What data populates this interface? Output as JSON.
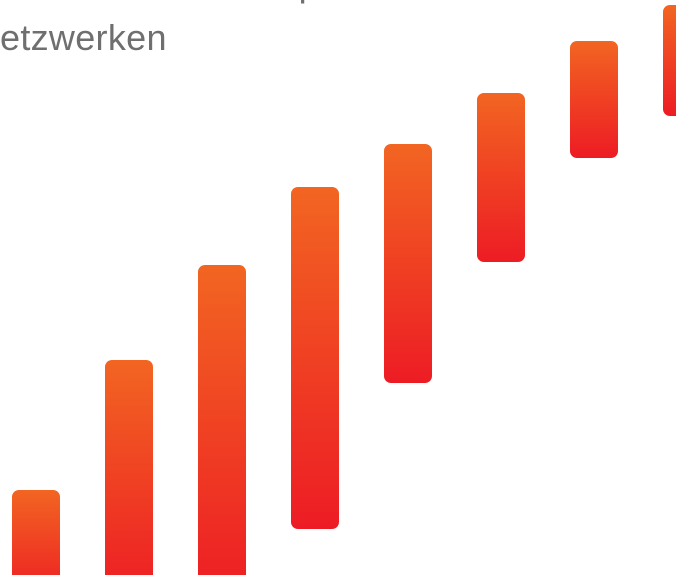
{
  "headline": {
    "line1": "Unternehmenskooperationen in",
    "line2": "etzwerken"
  },
  "colors": {
    "bar_top": "#f26522",
    "bar_bottom": "#ed1c24",
    "text": "#6f6f6f",
    "background": "#ffffff"
  }
}
